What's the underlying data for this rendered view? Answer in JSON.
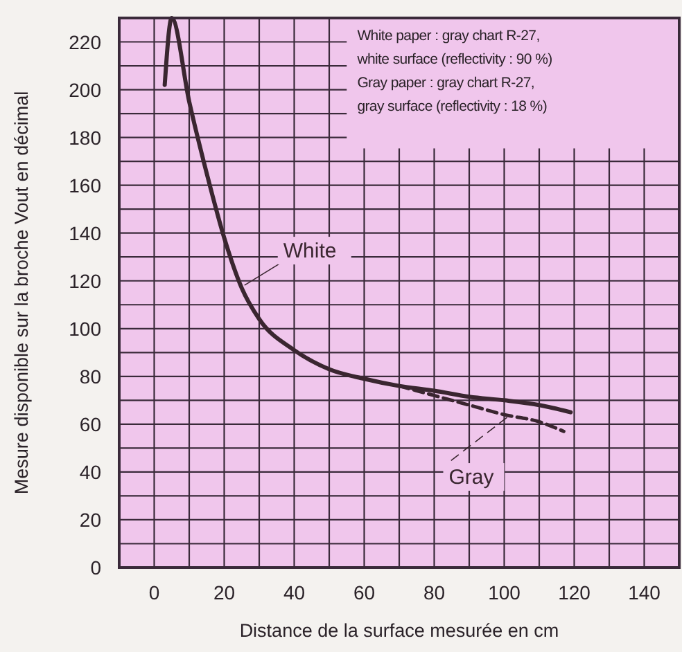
{
  "chart_data": {
    "type": "line",
    "xlabel": "Distance de la surface mesurée en cm",
    "ylabel": "Mesure disponible sur la broche Vout en décimal",
    "annotations": [
      "White paper : gray chart R-27,",
      "white surface (reflectivity : 90 %)",
      "Gray paper : gray chart R-27,",
      "gray surface (reflectivity : 18 %)"
    ],
    "xlim": [
      -10,
      150
    ],
    "xticks": [
      0,
      20,
      40,
      60,
      80,
      100,
      120,
      140
    ],
    "ylim": [
      0,
      230
    ],
    "yticks": [
      0,
      20,
      40,
      60,
      80,
      100,
      120,
      140,
      160,
      180,
      200,
      220
    ],
    "grid": true,
    "series": [
      {
        "name": "White",
        "color": "#3a2630",
        "line_style": "solid",
        "x": [
          3,
          5,
          10,
          15,
          20,
          25,
          30,
          40,
          50,
          60,
          70,
          80,
          90,
          100,
          110,
          119
        ],
        "values": [
          202,
          230,
          195,
          165,
          138,
          117,
          104,
          91,
          83,
          79,
          76,
          74,
          71.5,
          70,
          68,
          65
        ]
      },
      {
        "name": "Gray",
        "color": "#3a2630",
        "line_style": "dashed",
        "x": [
          70,
          80,
          90,
          100,
          110,
          117
        ],
        "values": [
          76,
          72,
          68,
          64,
          61,
          57
        ]
      }
    ]
  }
}
